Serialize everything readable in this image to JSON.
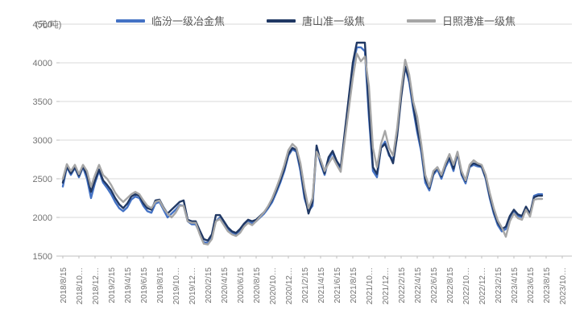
{
  "chart": {
    "unit_label": "(元/吨)",
    "background_color": "#ffffff",
    "gridline_color": "#d9d9d9",
    "axis_color": "#bfbfbf",
    "tick_text_color": "#737373",
    "legend_text_color": "#595959"
  },
  "chart_data": {
    "type": "line",
    "title": "",
    "xlabel": "",
    "ylabel": "(元/吨)",
    "grid": "horizontal",
    "legend_position": "top",
    "ylim": [
      1500,
      4500
    ],
    "y_ticks": [
      1500,
      2000,
      2500,
      3000,
      3500,
      4000,
      4500
    ],
    "x_tick_labels": [
      "2018/8/15",
      "2018/10…",
      "2018/12…",
      "2019/2/15",
      "2019/4/15",
      "2019/6/15",
      "2019/8/15",
      "2019/10…",
      "2019/12…",
      "2020/2/15",
      "2020/4/15",
      "2020/6/15",
      "2020/8/15",
      "2020/10…",
      "2020/12…",
      "2021/2/15",
      "2021/4/15",
      "2021/6/15",
      "2021/8/15",
      "2021/10…",
      "2021/12…",
      "2022/2/15",
      "2022/4/15",
      "2022/6/15",
      "2022/8/15",
      "2022/10…",
      "2022/12…",
      "2023/2/15",
      "2023/4/15",
      "2023/6/15",
      "2023/8/15",
      "2023/10…"
    ],
    "months_per_x_tick": 2,
    "x_axis_total_months": 63.6,
    "points_per_month": 2,
    "x_start_label": "2018/8/15",
    "x_end_of_data_label": "2023/10",
    "series": [
      {
        "name": "临汾一级冶金焦",
        "color": "#4472C4",
        "values": [
          2400,
          2650,
          2550,
          2640,
          2520,
          2650,
          2500,
          2250,
          2450,
          2600,
          2450,
          2380,
          2300,
          2200,
          2120,
          2080,
          2130,
          2230,
          2270,
          2250,
          2150,
          2080,
          2060,
          2180,
          2200,
          2100,
          2000,
          2050,
          2100,
          2160,
          2150,
          1950,
          1910,
          1910,
          1800,
          1680,
          1670,
          1750,
          1950,
          2000,
          1930,
          1850,
          1800,
          1780,
          1820,
          1900,
          1950,
          1920,
          1950,
          2000,
          2050,
          2120,
          2200,
          2320,
          2450,
          2600,
          2800,
          2880,
          2850,
          2600,
          2250,
          2080,
          2150,
          2880,
          2700,
          2550,
          2750,
          2840,
          2700,
          2620,
          3050,
          3500,
          3950,
          4200,
          4200,
          4150,
          3300,
          2600,
          2520,
          2900,
          2980,
          2800,
          2750,
          3100,
          3600,
          3950,
          3750,
          3400,
          3100,
          2850,
          2450,
          2350,
          2550,
          2620,
          2500,
          2650,
          2750,
          2600,
          2830,
          2550,
          2440,
          2650,
          2680,
          2660,
          2650,
          2500,
          2250,
          2050,
          1900,
          1820,
          1850,
          2000,
          2080,
          2020,
          2000,
          2130,
          2030,
          2280,
          2300,
          2300
        ]
      },
      {
        "name": "唐山准一级焦",
        "color": "#203864",
        "values": [
          2450,
          2660,
          2570,
          2650,
          2540,
          2660,
          2550,
          2330,
          2480,
          2620,
          2480,
          2420,
          2350,
          2250,
          2170,
          2120,
          2180,
          2270,
          2300,
          2280,
          2180,
          2120,
          2100,
          2220,
          2230,
          2130,
          2050,
          2100,
          2150,
          2200,
          2220,
          1970,
          1950,
          1950,
          1830,
          1720,
          1700,
          1780,
          2030,
          2030,
          1950,
          1870,
          1820,
          1800,
          1850,
          1920,
          1970,
          1950,
          1970,
          2020,
          2070,
          2140,
          2230,
          2350,
          2480,
          2630,
          2820,
          2900,
          2870,
          2650,
          2300,
          2050,
          2200,
          2930,
          2720,
          2570,
          2780,
          2860,
          2730,
          2650,
          3100,
          3550,
          4000,
          4260,
          4260,
          4260,
          3400,
          2650,
          2560,
          2900,
          2950,
          2820,
          2700,
          3050,
          3550,
          3950,
          3800,
          3450,
          3150,
          2900,
          2500,
          2380,
          2570,
          2650,
          2530,
          2680,
          2780,
          2630,
          2840,
          2570,
          2470,
          2660,
          2700,
          2680,
          2660,
          2520,
          2280,
          2080,
          1930,
          1850,
          1880,
          2020,
          2100,
          2040,
          2020,
          2140,
          2050,
          2260,
          2280,
          2280
        ]
      },
      {
        "name": "日照港准一级焦",
        "color": "#A6A6A6",
        "values": [
          2500,
          2690,
          2600,
          2680,
          2560,
          2680,
          2600,
          2400,
          2550,
          2680,
          2550,
          2500,
          2420,
          2320,
          2250,
          2200,
          2250,
          2300,
          2330,
          2300,
          2220,
          2150,
          2120,
          2200,
          2220,
          2120,
          2050,
          2000,
          2060,
          2150,
          2150,
          1950,
          1930,
          1930,
          1780,
          1660,
          1650,
          1720,
          1950,
          1980,
          1900,
          1820,
          1780,
          1760,
          1800,
          1880,
          1930,
          1900,
          1950,
          2010,
          2070,
          2150,
          2250,
          2380,
          2520,
          2680,
          2870,
          2950,
          2900,
          2700,
          2380,
          2120,
          2250,
          2850,
          2750,
          2600,
          2700,
          2780,
          2680,
          2590,
          3000,
          3400,
          3800,
          4120,
          4020,
          4080,
          3700,
          2900,
          2650,
          2950,
          3120,
          2900,
          2800,
          3150,
          3650,
          4040,
          3850,
          3500,
          3300,
          2950,
          2550,
          2400,
          2600,
          2650,
          2550,
          2700,
          2820,
          2680,
          2850,
          2600,
          2480,
          2680,
          2740,
          2700,
          2680,
          2550,
          2320,
          2120,
          1960,
          1870,
          1750,
          1950,
          2050,
          1990,
          1970,
          2100,
          2010,
          2230,
          2240,
          2240
        ]
      }
    ]
  }
}
